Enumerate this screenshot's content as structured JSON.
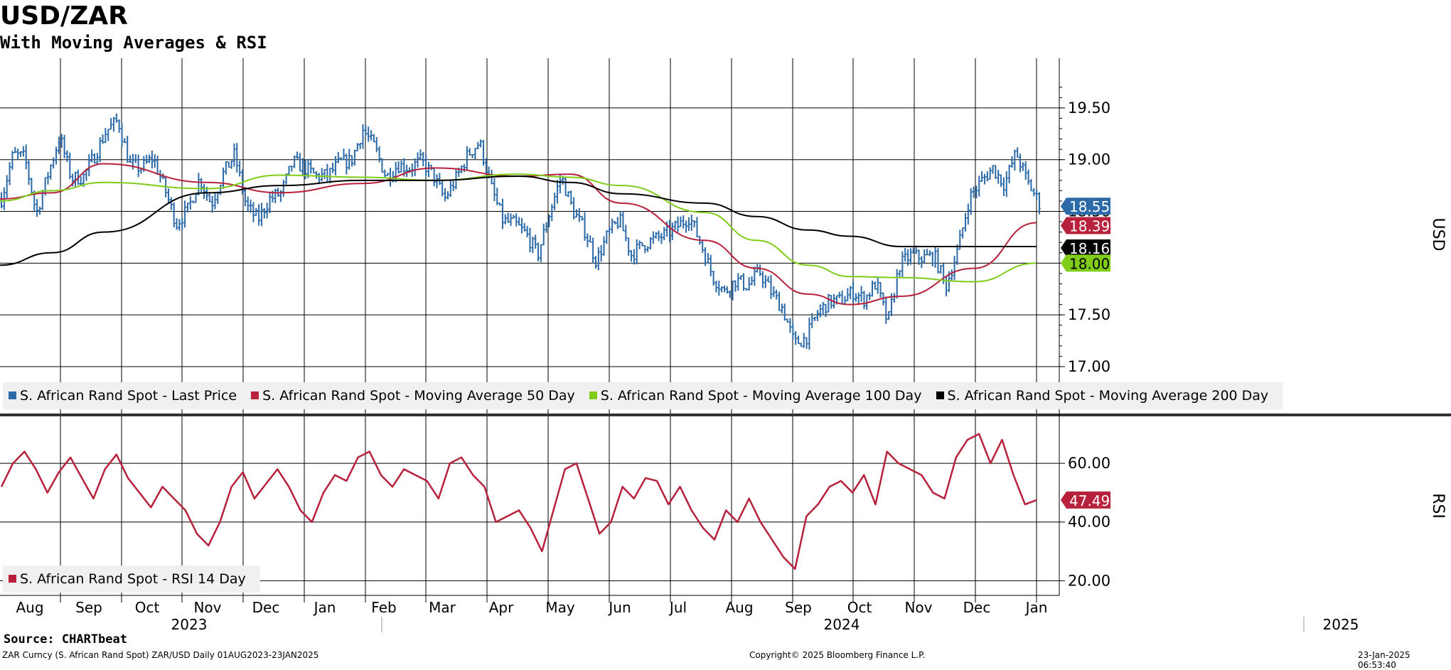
{
  "header": {
    "title": "USD/ZAR",
    "subtitle": "With Moving Averages & RSI"
  },
  "footer": {
    "source": "Source: CHARTbeat",
    "ticker": "ZAR Curncy (S. African Rand Spot) ZAR/USD  Daily 01AUG2023-23JAN2025",
    "copyright": "Copyright© 2025 Bloomberg Finance L.P.",
    "timestamp": "23-Jan-2025 06:53:40"
  },
  "colors": {
    "price": "#2d6aa8",
    "ma50": "#b8213c",
    "ma100": "#7fcc19",
    "ma200": "#000000",
    "rsi": "#b8213c"
  },
  "chart_data": [
    {
      "type": "bar",
      "subtype": "ohlc-price-with-moving-averages",
      "y_axis_title": "USD",
      "ylim": [
        16.78,
        19.98
      ],
      "yticks": [
        "17.00",
        "17.50",
        "18.00",
        "18.50",
        "19.00",
        "19.50"
      ],
      "grid": true,
      "legend_position": "bottom-left",
      "x_months": [
        "Aug",
        "Sep",
        "Oct",
        "Nov",
        "Dec",
        "Jan",
        "Feb",
        "Mar",
        "Apr",
        "May",
        "Jun",
        "Jul",
        "Aug",
        "Sep",
        "Oct",
        "Nov",
        "Dec",
        "Jan"
      ],
      "x_years": [
        "2023",
        "2024",
        "2025"
      ],
      "last_values": {
        "price": "18.55",
        "ma50": "18.39",
        "ma200": "18.16",
        "ma100": "18.00"
      },
      "series": [
        {
          "name": "S. African Rand Spot - Last Price",
          "key": "price",
          "approx_weekly_close": [
            18.62,
            19.05,
            19.02,
            18.48,
            18.86,
            19.22,
            18.82,
            18.83,
            19.04,
            19.28,
            19.38,
            18.95,
            18.92,
            19.02,
            18.72,
            18.38,
            18.52,
            18.82,
            18.57,
            18.86,
            19.05,
            18.55,
            18.42,
            18.62,
            18.68,
            18.98,
            18.92,
            18.84,
            18.85,
            18.97,
            18.99,
            19.29,
            19.12,
            18.83,
            18.95,
            18.92,
            18.99,
            18.85,
            18.62,
            18.82,
            19.05,
            19.17,
            18.73,
            18.41,
            18.38,
            18.28,
            18.08,
            18.49,
            18.84,
            18.51,
            18.32,
            18.02,
            18.28,
            18.42,
            18.08,
            18.18,
            18.23,
            18.28,
            18.36,
            18.45,
            18.18,
            17.87,
            17.72,
            17.84,
            17.78,
            17.92,
            17.72,
            17.56,
            17.22,
            17.28,
            17.52,
            17.63,
            17.64,
            17.72,
            17.65,
            17.81,
            17.42,
            17.98,
            18.08,
            18.05,
            18.07,
            17.78,
            18.12,
            18.63,
            18.79,
            18.92,
            18.76,
            19.07,
            18.78,
            18.58
          ]
        },
        {
          "name": "S. African Rand Spot - Moving Average 50 Day",
          "key": "ma50",
          "x": [
            0,
            0.05,
            0.1,
            0.2,
            0.27,
            0.35,
            0.42,
            0.5,
            0.55,
            0.6,
            0.68,
            0.73,
            0.78,
            0.82,
            0.87,
            0.94,
            1.0
          ],
          "values": [
            18.62,
            18.68,
            18.96,
            18.78,
            18.68,
            18.77,
            18.92,
            18.84,
            18.86,
            18.58,
            18.22,
            17.95,
            17.7,
            17.6,
            17.68,
            17.95,
            18.39
          ]
        },
        {
          "name": "S. African Rand Spot - Moving Average 100 Day",
          "key": "ma100",
          "x": [
            0,
            0.05,
            0.1,
            0.2,
            0.27,
            0.35,
            0.42,
            0.5,
            0.55,
            0.6,
            0.68,
            0.73,
            0.78,
            0.82,
            0.87,
            0.94,
            1.0
          ],
          "values": [
            18.6,
            18.7,
            18.78,
            18.72,
            18.85,
            18.83,
            18.8,
            18.86,
            18.83,
            18.75,
            18.49,
            18.22,
            17.98,
            17.87,
            17.86,
            17.82,
            18.0
          ]
        },
        {
          "name": "S. African Rand Spot - Moving Average 200 Day",
          "key": "ma200",
          "x": [
            0,
            0.05,
            0.1,
            0.2,
            0.27,
            0.35,
            0.42,
            0.5,
            0.55,
            0.6,
            0.68,
            0.73,
            0.78,
            0.82,
            0.87,
            0.94,
            1.0
          ],
          "values": [
            17.98,
            18.1,
            18.3,
            18.68,
            18.75,
            18.8,
            18.8,
            18.84,
            18.78,
            18.67,
            18.58,
            18.45,
            18.32,
            18.26,
            18.16,
            18.16,
            18.16
          ]
        }
      ]
    },
    {
      "type": "line",
      "y_axis_title": "RSI",
      "ylim": [
        15,
        76
      ],
      "yticks": [
        "20.00",
        "40.00",
        "60.00"
      ],
      "grid": true,
      "legend_position": "bottom-left",
      "last_values": {
        "rsi": "47.49"
      },
      "series": [
        {
          "name": "S. African Rand Spot - RSI 14 Day",
          "key": "rsi",
          "values": [
            52,
            60,
            64,
            58,
            50,
            57,
            62,
            55,
            48,
            58,
            63,
            55,
            50,
            45,
            52,
            48,
            44,
            36,
            32,
            40,
            52,
            57,
            48,
            53,
            58,
            52,
            44,
            40,
            50,
            56,
            54,
            62,
            64,
            56,
            52,
            58,
            56,
            54,
            48,
            60,
            62,
            56,
            52,
            40,
            42,
            44,
            38,
            30,
            44,
            58,
            60,
            48,
            36,
            40,
            52,
            48,
            55,
            54,
            46,
            52,
            44,
            38,
            34,
            44,
            40,
            48,
            40,
            34,
            28,
            24,
            42,
            46,
            52,
            54,
            50,
            56,
            46,
            64,
            60,
            58,
            56,
            50,
            48,
            62,
            68,
            70,
            60,
            68,
            56,
            46,
            47.49
          ]
        }
      ]
    }
  ],
  "legends": {
    "top": [
      "S. African Rand Spot - Last Price",
      "S. African Rand Spot - Moving Average 50 Day",
      "S. African Rand Spot - Moving Average 100 Day",
      "S. African Rand Spot - Moving Average 200 Day"
    ],
    "bottom": [
      "S. African Rand Spot - RSI 14 Day"
    ]
  }
}
